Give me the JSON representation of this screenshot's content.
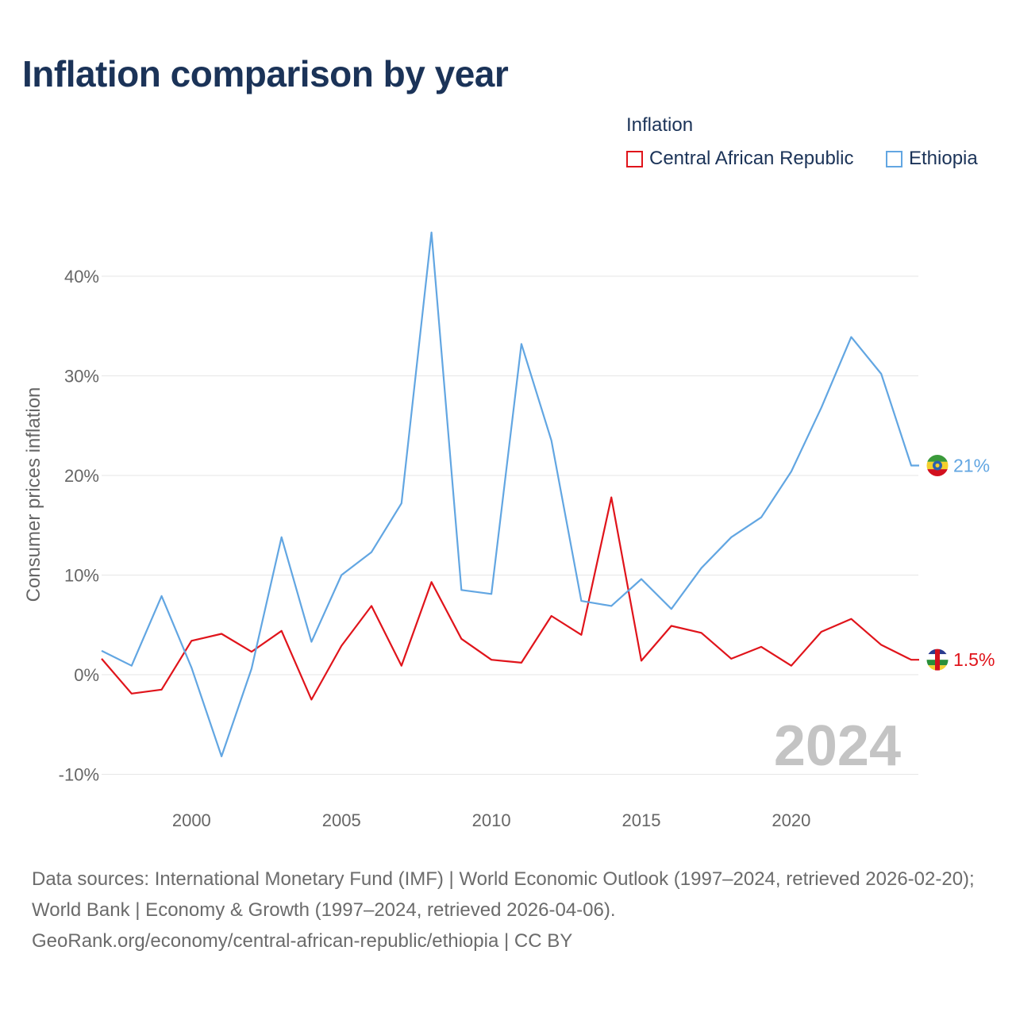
{
  "title": "Inflation comparison by year",
  "legend": {
    "title": "Inflation",
    "items": [
      {
        "label": "Central African Republic",
        "color": "#e0141b"
      },
      {
        "label": "Ethiopia",
        "color": "#62a6e2"
      }
    ]
  },
  "source": {
    "line1": "Data sources: International Monetary Fund (IMF) | World Economic Outlook (1997–2024, retrieved 2026-02-20); World Bank | Economy & Growth (1997–2024, retrieved 2026-04-06).",
    "line2": "GeoRank.org/economy/central-african-republic/ethiopia | CC BY"
  },
  "chart_data": {
    "type": "line",
    "title": "Inflation comparison by year",
    "xlabel": "",
    "ylabel": "Consumer prices inflation",
    "xlim": [
      1997,
      2024
    ],
    "ylim": [
      -10,
      45
    ],
    "x_ticks": [
      2000,
      2005,
      2010,
      2015,
      2020
    ],
    "y_ticks": [
      {
        "value": 40,
        "label": "40%"
      },
      {
        "value": 30,
        "label": "30%"
      },
      {
        "value": 20,
        "label": "20%"
      },
      {
        "value": 10,
        "label": "10%"
      },
      {
        "value": 0,
        "label": "0%"
      },
      {
        "value": -10,
        "label": "-10%"
      }
    ],
    "grid": true,
    "legend_position": "top-right",
    "year_watermark": "2024",
    "x": [
      1997,
      1998,
      1999,
      2000,
      2001,
      2002,
      2003,
      2004,
      2005,
      2006,
      2007,
      2008,
      2009,
      2010,
      2011,
      2012,
      2013,
      2014,
      2015,
      2016,
      2017,
      2018,
      2019,
      2020,
      2021,
      2022,
      2023,
      2024
    ],
    "series": [
      {
        "name": "Central African Republic",
        "color": "#e0141b",
        "end_label": "1.5%",
        "values": [
          1.6,
          -1.9,
          -1.5,
          3.4,
          4.1,
          2.3,
          4.4,
          -2.5,
          2.9,
          6.9,
          0.9,
          9.3,
          3.6,
          1.5,
          1.2,
          5.9,
          4.0,
          17.8,
          1.4,
          4.9,
          4.2,
          1.6,
          2.8,
          0.9,
          4.3,
          5.6,
          3.0,
          1.5
        ]
      },
      {
        "name": "Ethiopia",
        "color": "#62a6e2",
        "end_label": "21%",
        "values": [
          2.4,
          0.9,
          7.9,
          0.7,
          -8.2,
          0.6,
          13.8,
          3.3,
          10.0,
          12.3,
          17.2,
          44.4,
          8.5,
          8.1,
          33.2,
          23.5,
          7.4,
          6.9,
          9.6,
          6.6,
          10.7,
          13.8,
          15.8,
          20.4,
          26.8,
          33.9,
          30.2,
          21.0
        ]
      }
    ]
  }
}
